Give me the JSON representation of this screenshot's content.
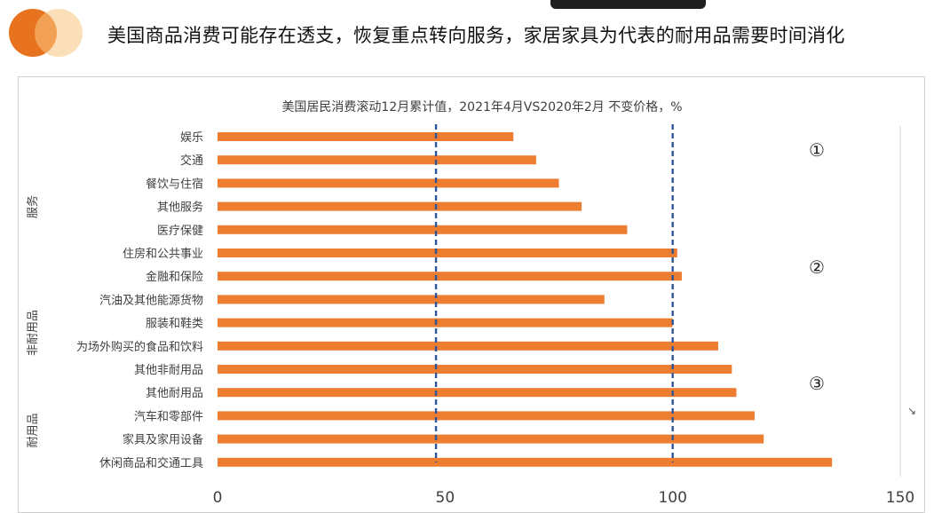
{
  "slide": {
    "headline": "美国商品消费可能存在透支，恢复重点转向服务，家居家具为代表的耐用品需要时间消化"
  },
  "chart_data": {
    "type": "bar",
    "orientation": "horizontal",
    "title": "美国居民消费滚动12月累计值，2021年4月VS2020年2月   不变价格，%",
    "categories": [
      "娱乐",
      "交通",
      "餐饮与住宿",
      "其他服务",
      "医疗保健",
      "住房和公共事业",
      "金融和保险",
      "汽油及其他能源货物",
      "服装和鞋类",
      "为场外购买的食品和饮料",
      "其他非耐用品",
      "其他耐用品",
      "汽车和零部件",
      "家具及家用设备",
      "休闲商品和交通工具"
    ],
    "values": [
      65,
      70,
      75,
      80,
      90,
      101,
      102,
      85,
      100,
      110,
      113,
      114,
      118,
      120,
      135
    ],
    "groups": [
      {
        "label": "服务",
        "from": 0,
        "to": 4
      },
      {
        "label": "非耐用品",
        "from": 5,
        "to": 10
      },
      {
        "label": "耐用品",
        "from": 11,
        "to": 14
      }
    ],
    "xlim": [
      0,
      150
    ],
    "xticks": [
      "0",
      "50",
      "100",
      "150"
    ],
    "reference_lines": [
      48,
      100
    ],
    "annotations": [
      "①",
      "②",
      "③"
    ],
    "bar_color": "#ed7d31",
    "ref_line_color": "#2e5597"
  }
}
